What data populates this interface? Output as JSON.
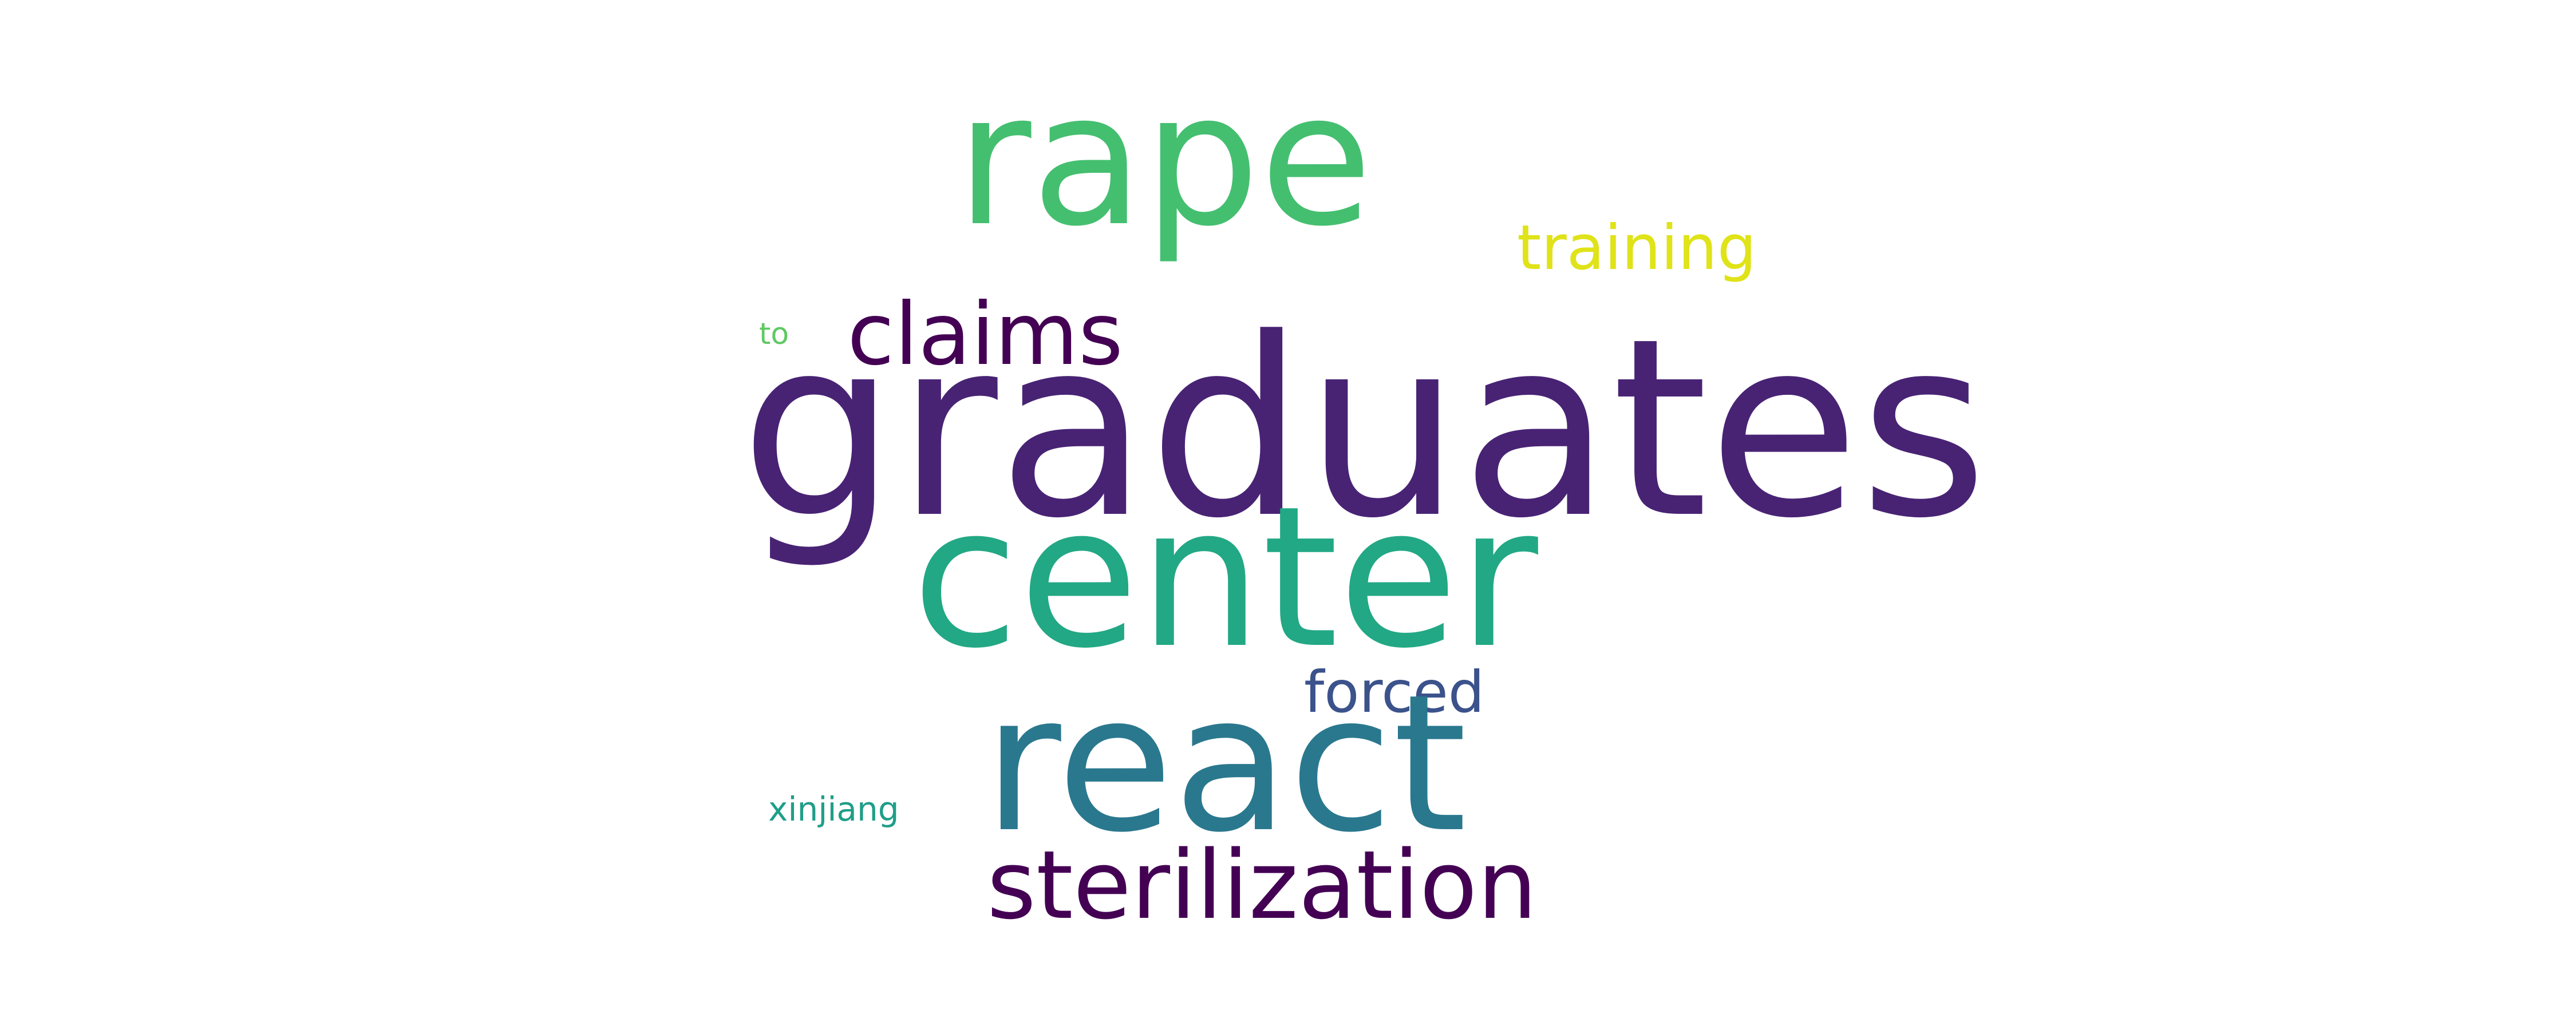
{
  "words": {
    "graduates": {
      "text": "graduates",
      "color": "#482374"
    },
    "rape": {
      "text": "rape",
      "color": "#44bf70"
    },
    "center": {
      "text": "center",
      "color": "#22a884"
    },
    "react": {
      "text": "react",
      "color": "#2a788e"
    },
    "sterilization": {
      "text": "sterilization",
      "color": "#440154"
    },
    "claims": {
      "text": "claims",
      "color": "#440154"
    },
    "training": {
      "text": "training",
      "color": "#dfe318"
    },
    "forced": {
      "text": "forced",
      "color": "#3b528b"
    },
    "xinjiang": {
      "text": "xinjiang",
      "color": "#1f9e89"
    },
    "to": {
      "text": "to",
      "color": "#5ec962"
    }
  }
}
